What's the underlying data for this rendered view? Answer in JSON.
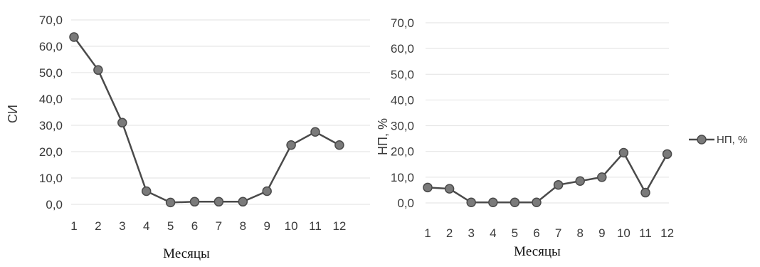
{
  "chart_data": [
    {
      "type": "line",
      "ylabel": "СИ",
      "xlabel": "Месяцы",
      "ylim": [
        0,
        70
      ],
      "yticks": [
        "0,0",
        "10,0",
        "20,0",
        "30,0",
        "40,0",
        "50,0",
        "60,0",
        "70,0"
      ],
      "categories": [
        "1",
        "2",
        "3",
        "4",
        "5",
        "6",
        "7",
        "8",
        "9",
        "10",
        "11",
        "12"
      ],
      "series": [
        {
          "values": [
            63.5,
            51.0,
            31.0,
            5.0,
            0.7,
            1.0,
            1.0,
            1.0,
            5.0,
            22.5,
            27.5,
            22.5
          ]
        }
      ],
      "grid": true,
      "color": "#4a4a4a"
    },
    {
      "type": "line",
      "ylabel": "НП, %",
      "xlabel": "Месяцы",
      "ylim": [
        0,
        70
      ],
      "yticks": [
        "0,0",
        "10,0",
        "20,0",
        "30,0",
        "40,0",
        "50,0",
        "60,0",
        "70,0"
      ],
      "categories": [
        "1",
        "2",
        "3",
        "4",
        "5",
        "6",
        "7",
        "8",
        "9",
        "10",
        "11",
        "12"
      ],
      "series": [
        {
          "name": "НП, %",
          "values": [
            6.0,
            5.5,
            0.2,
            0.2,
            0.2,
            0.2,
            7.0,
            8.5,
            10.0,
            19.5,
            4.0,
            19.0
          ]
        }
      ],
      "legend": "right",
      "grid": true,
      "color": "#4a4a4a"
    }
  ]
}
